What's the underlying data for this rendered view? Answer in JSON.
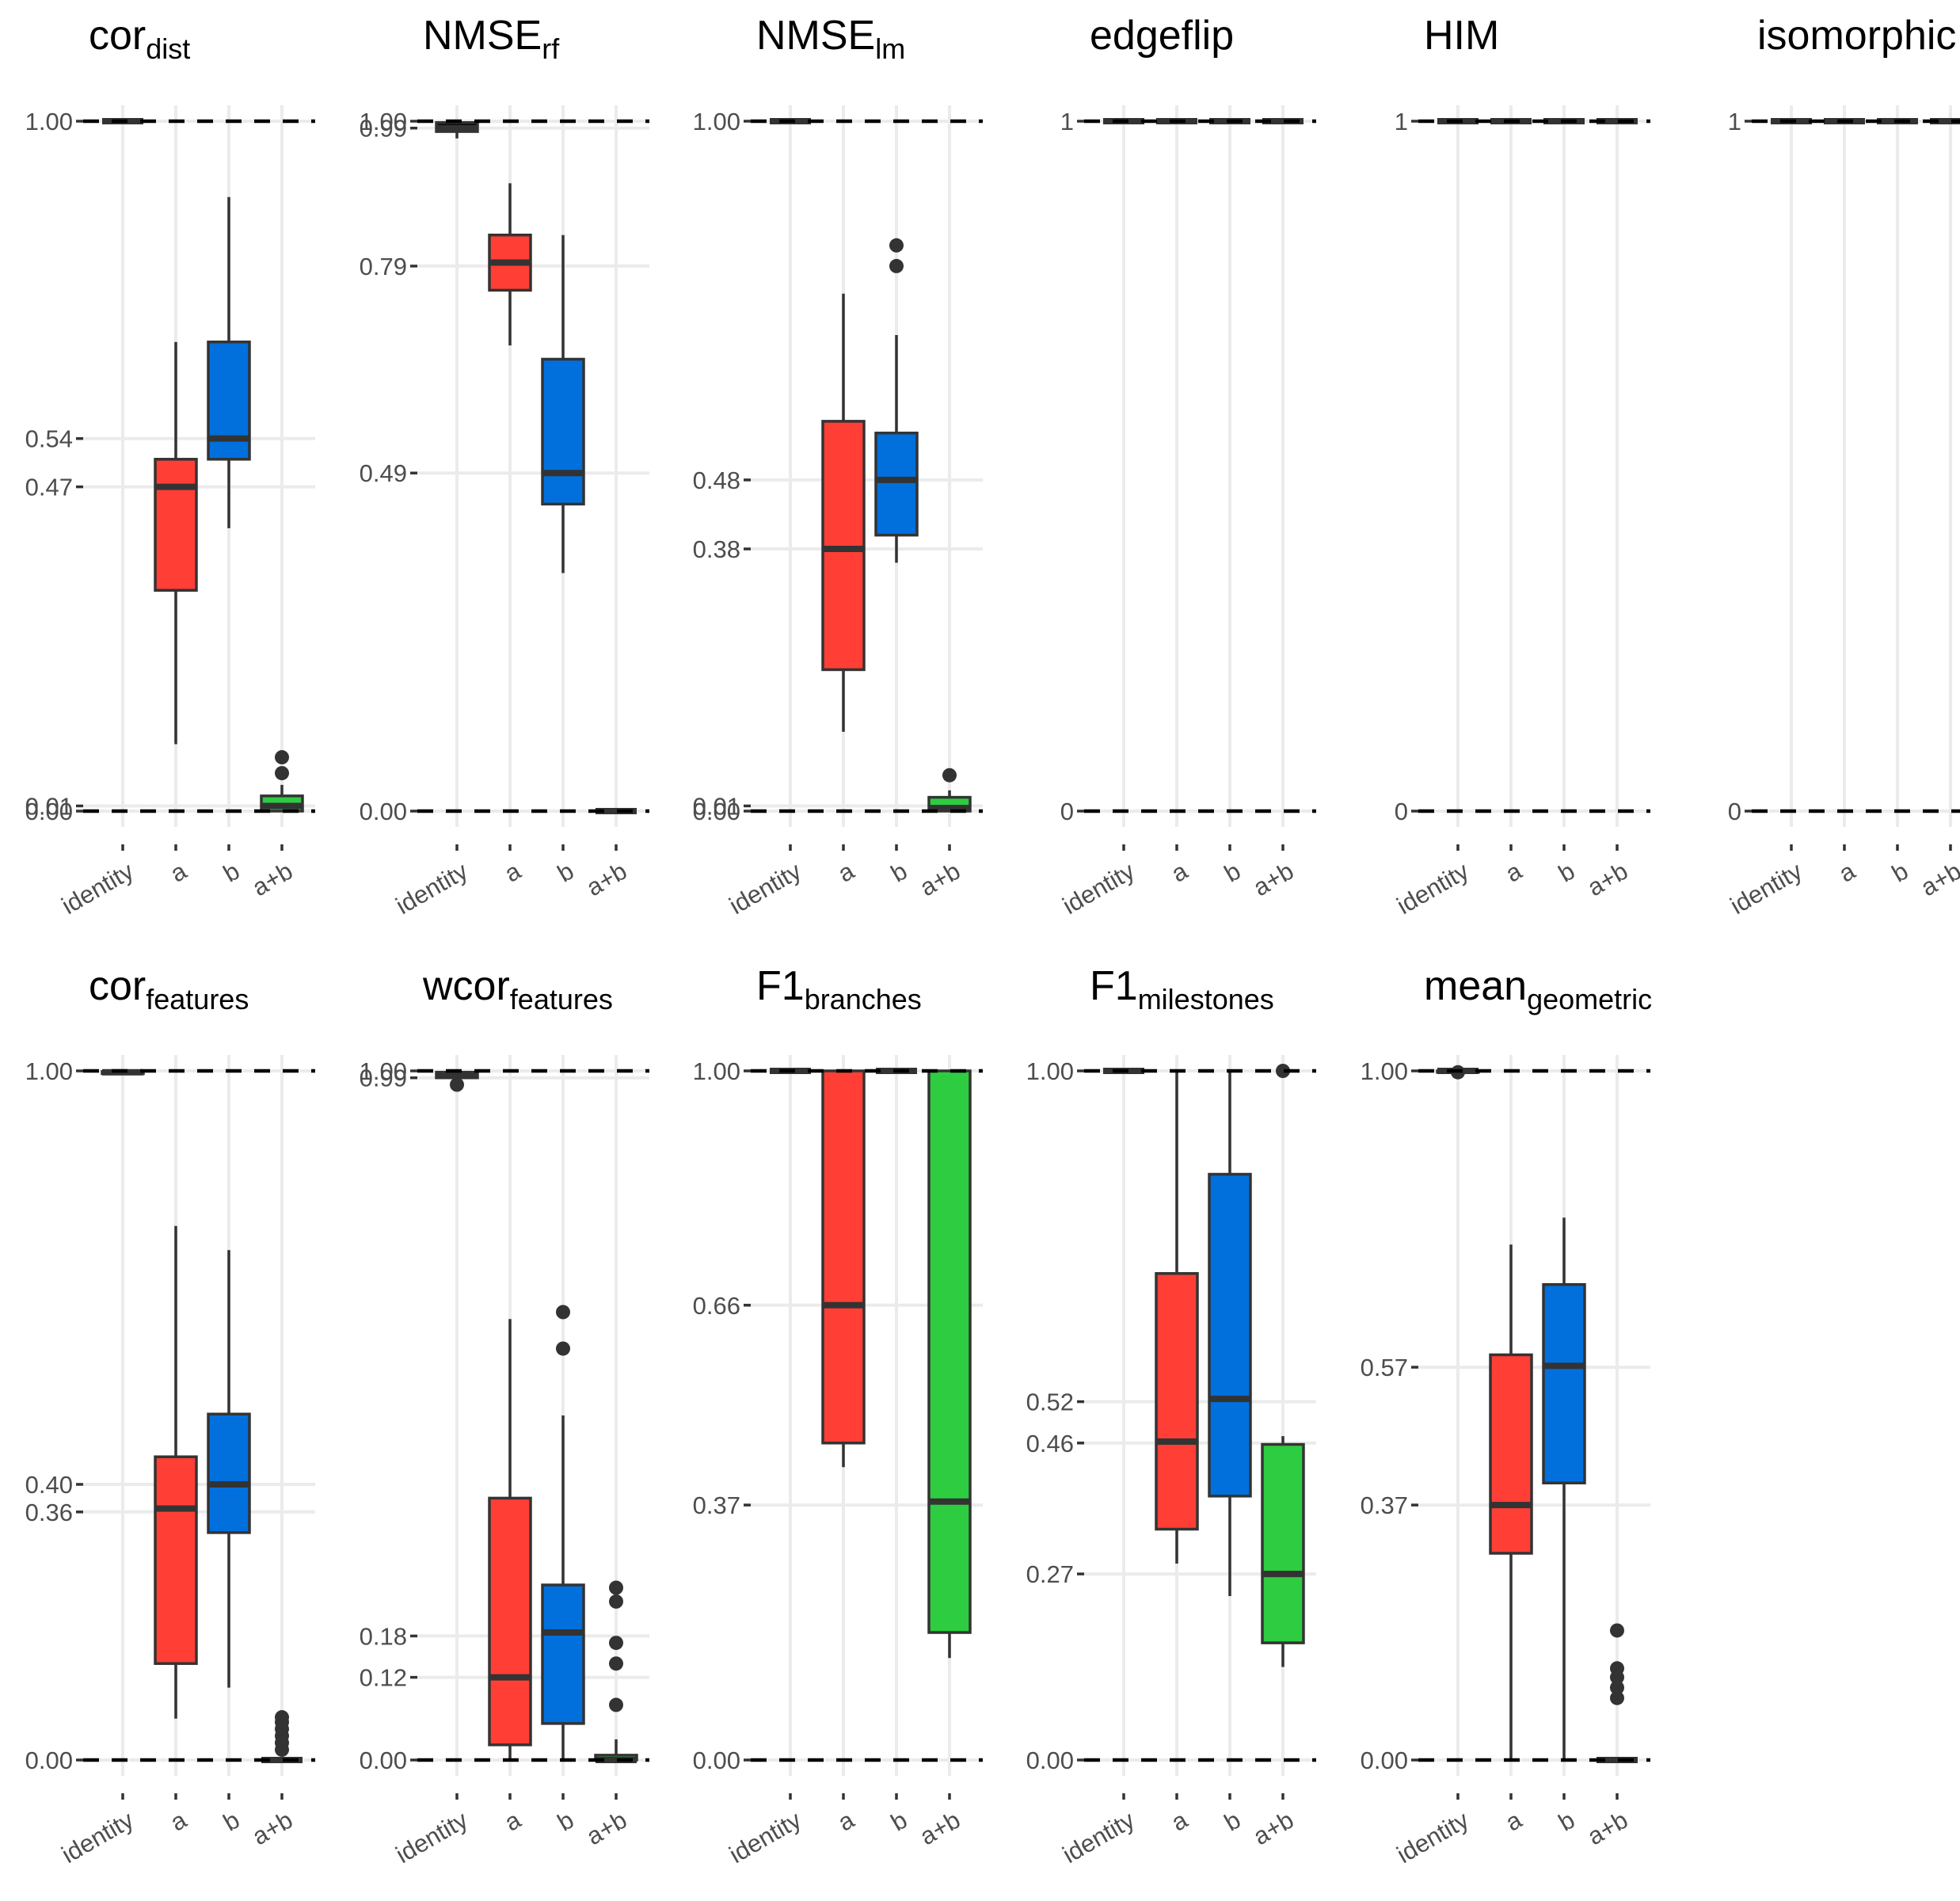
{
  "chart_data": [
    {
      "type": "box",
      "title": {
        "main": "cor",
        "sub": "dist"
      },
      "categories": [
        "identity",
        "a",
        "b",
        "a+b"
      ],
      "yticks": [
        {
          "value": 0.0,
          "label": "0.00"
        },
        {
          "value": 0.0075,
          "label": "0.01"
        },
        {
          "value": 0.47,
          "label": "0.47"
        },
        {
          "value": 0.54,
          "label": "0.54"
        },
        {
          "value": 1.0,
          "label": "1.00"
        }
      ],
      "boxes": [
        {
          "category": "identity",
          "color": "#000000",
          "min": 1.0,
          "q1": 1.0,
          "median": 1.0,
          "q3": 1.0,
          "max": 1.0,
          "outliers": []
        },
        {
          "category": "a",
          "color": "#ff3f35",
          "min": 0.097,
          "q1": 0.32,
          "median": 0.47,
          "q3": 0.51,
          "max": 0.68,
          "outliers": []
        },
        {
          "category": "b",
          "color": "#0170dd",
          "min": 0.41,
          "q1": 0.51,
          "median": 0.54,
          "q3": 0.68,
          "max": 0.89,
          "outliers": []
        },
        {
          "category": "a+b",
          "color": "#2ecc40",
          "min": 0.0,
          "q1": 0.0,
          "median": 0.0075,
          "q3": 0.022,
          "max": 0.038,
          "outliers": [
            0.055,
            0.078
          ]
        }
      ]
    },
    {
      "type": "box",
      "title": {
        "main": "NMSE",
        "sub": "rf"
      },
      "categories": [
        "identity",
        "a",
        "b",
        "a+b"
      ],
      "yticks": [
        {
          "value": 0.0,
          "label": "0.00"
        },
        {
          "value": 0.49,
          "label": "0.49"
        },
        {
          "value": 0.79,
          "label": "0.79"
        },
        {
          "value": 0.99,
          "label": "0.99"
        },
        {
          "value": 1.0,
          "label": "1.00"
        }
      ],
      "boxes": [
        {
          "category": "identity",
          "color": "#000000",
          "min": 0.975,
          "q1": 0.985,
          "median": 0.99,
          "q3": 0.998,
          "max": 1.0,
          "outliers": []
        },
        {
          "category": "a",
          "color": "#ff3f35",
          "min": 0.675,
          "q1": 0.755,
          "median": 0.795,
          "q3": 0.835,
          "max": 0.91,
          "outliers": []
        },
        {
          "category": "b",
          "color": "#0170dd",
          "min": 0.345,
          "q1": 0.445,
          "median": 0.49,
          "q3": 0.655,
          "max": 0.835,
          "outliers": []
        },
        {
          "category": "a+b",
          "color": "#2ecc40",
          "min": 0.0,
          "q1": 0.0,
          "median": 0.0,
          "q3": 0.0,
          "max": 0.0,
          "outliers": []
        }
      ]
    },
    {
      "type": "box",
      "title": {
        "main": "NMSE",
        "sub": "lm"
      },
      "categories": [
        "identity",
        "a",
        "b",
        "a+b"
      ],
      "yticks": [
        {
          "value": 0.0,
          "label": "0.00"
        },
        {
          "value": 0.0075,
          "label": "0.01"
        },
        {
          "value": 0.38,
          "label": "0.38"
        },
        {
          "value": 0.48,
          "label": "0.48"
        },
        {
          "value": 1.0,
          "label": "1.00"
        }
      ],
      "boxes": [
        {
          "category": "identity",
          "color": "#000000",
          "min": 1.0,
          "q1": 1.0,
          "median": 1.0,
          "q3": 1.0,
          "max": 1.0,
          "outliers": []
        },
        {
          "category": "a",
          "color": "#ff3f35",
          "min": 0.115,
          "q1": 0.205,
          "median": 0.38,
          "q3": 0.565,
          "max": 0.75,
          "outliers": []
        },
        {
          "category": "b",
          "color": "#0170dd",
          "min": 0.36,
          "q1": 0.4,
          "median": 0.48,
          "q3": 0.548,
          "max": 0.69,
          "outliers": [
            0.79,
            0.82
          ]
        },
        {
          "category": "a+b",
          "color": "#2ecc40",
          "min": 0.0,
          "q1": 0.0,
          "median": 0.0045,
          "q3": 0.02,
          "max": 0.03,
          "outliers": [
            0.052
          ]
        }
      ]
    },
    {
      "type": "box",
      "title": {
        "main": "edgeflip",
        "sub": ""
      },
      "categories": [
        "identity",
        "a",
        "b",
        "a+b"
      ],
      "yticks": [
        {
          "value": 0.0,
          "label": "0"
        },
        {
          "value": 1.0,
          "label": "1"
        }
      ],
      "boxes": [
        {
          "category": "identity",
          "color": "#000000",
          "min": 1.0,
          "q1": 1.0,
          "median": 1.0,
          "q3": 1.0,
          "max": 1.0,
          "outliers": []
        },
        {
          "category": "a",
          "color": "#ff3f35",
          "min": 1.0,
          "q1": 1.0,
          "median": 1.0,
          "q3": 1.0,
          "max": 1.0,
          "outliers": []
        },
        {
          "category": "b",
          "color": "#0170dd",
          "min": 1.0,
          "q1": 1.0,
          "median": 1.0,
          "q3": 1.0,
          "max": 1.0,
          "outliers": []
        },
        {
          "category": "a+b",
          "color": "#2ecc40",
          "min": 1.0,
          "q1": 1.0,
          "median": 1.0,
          "q3": 1.0,
          "max": 1.0,
          "outliers": []
        }
      ]
    },
    {
      "type": "box",
      "title": {
        "main": "HIM",
        "sub": ""
      },
      "categories": [
        "identity",
        "a",
        "b",
        "a+b"
      ],
      "yticks": [
        {
          "value": 0.0,
          "label": "0"
        },
        {
          "value": 1.0,
          "label": "1"
        }
      ],
      "boxes": [
        {
          "category": "identity",
          "color": "#000000",
          "min": 1.0,
          "q1": 1.0,
          "median": 1.0,
          "q3": 1.0,
          "max": 1.0,
          "outliers": []
        },
        {
          "category": "a",
          "color": "#ff3f35",
          "min": 1.0,
          "q1": 1.0,
          "median": 1.0,
          "q3": 1.0,
          "max": 1.0,
          "outliers": []
        },
        {
          "category": "b",
          "color": "#0170dd",
          "min": 1.0,
          "q1": 1.0,
          "median": 1.0,
          "q3": 1.0,
          "max": 1.0,
          "outliers": []
        },
        {
          "category": "a+b",
          "color": "#2ecc40",
          "min": 1.0,
          "q1": 1.0,
          "median": 1.0,
          "q3": 1.0,
          "max": 1.0,
          "outliers": []
        }
      ]
    },
    {
      "type": "box",
      "title": {
        "main": "isomorphic",
        "sub": ""
      },
      "categories": [
        "identity",
        "a",
        "b",
        "a+b"
      ],
      "yticks": [
        {
          "value": 0.0,
          "label": "0"
        },
        {
          "value": 1.0,
          "label": "1"
        }
      ],
      "boxes": [
        {
          "category": "identity",
          "color": "#000000",
          "min": 1.0,
          "q1": 1.0,
          "median": 1.0,
          "q3": 1.0,
          "max": 1.0,
          "outliers": []
        },
        {
          "category": "a",
          "color": "#ff3f35",
          "min": 1.0,
          "q1": 1.0,
          "median": 1.0,
          "q3": 1.0,
          "max": 1.0,
          "outliers": []
        },
        {
          "category": "b",
          "color": "#0170dd",
          "min": 1.0,
          "q1": 1.0,
          "median": 1.0,
          "q3": 1.0,
          "max": 1.0,
          "outliers": []
        },
        {
          "category": "a+b",
          "color": "#2ecc40",
          "min": 1.0,
          "q1": 1.0,
          "median": 1.0,
          "q3": 1.0,
          "max": 1.0,
          "outliers": []
        }
      ]
    },
    {
      "type": "box",
      "title": {
        "main": "cor",
        "sub": "features"
      },
      "categories": [
        "identity",
        "a",
        "b",
        "a+b"
      ],
      "yticks": [
        {
          "value": 0.0,
          "label": "0.00"
        },
        {
          "value": 0.36,
          "label": "0.36"
        },
        {
          "value": 0.4,
          "label": "0.40"
        },
        {
          "value": 1.0,
          "label": "1.00"
        }
      ],
      "boxes": [
        {
          "category": "identity",
          "color": "#000000",
          "min": 0.995,
          "q1": 0.996,
          "median": 0.998,
          "q3": 0.999,
          "max": 1.0,
          "outliers": []
        },
        {
          "category": "a",
          "color": "#ff3f35",
          "min": 0.06,
          "q1": 0.14,
          "median": 0.365,
          "q3": 0.44,
          "max": 0.775,
          "outliers": []
        },
        {
          "category": "b",
          "color": "#0170dd",
          "min": 0.105,
          "q1": 0.33,
          "median": 0.4,
          "q3": 0.502,
          "max": 0.74,
          "outliers": []
        },
        {
          "category": "a+b",
          "color": "#2ecc40",
          "min": 0.0,
          "q1": 0.0,
          "median": 0.0,
          "q3": 0.0,
          "max": 0.0,
          "outliers": [
            0.015,
            0.025,
            0.035,
            0.045,
            0.055,
            0.062
          ]
        }
      ]
    },
    {
      "type": "box",
      "title": {
        "main": "wcor",
        "sub": "features"
      },
      "categories": [
        "identity",
        "a",
        "b",
        "a+b"
      ],
      "yticks": [
        {
          "value": 0.0,
          "label": "0.00"
        },
        {
          "value": 0.12,
          "label": "0.12"
        },
        {
          "value": 0.18,
          "label": "0.18"
        },
        {
          "value": 0.99,
          "label": "0.99"
        },
        {
          "value": 1.0,
          "label": "1.00"
        }
      ],
      "boxes": [
        {
          "category": "identity",
          "color": "#000000",
          "min": 0.985,
          "q1": 0.99,
          "median": 0.995,
          "q3": 0.998,
          "max": 1.0,
          "outliers": [
            0.98
          ]
        },
        {
          "category": "a",
          "color": "#ff3f35",
          "min": 0.0,
          "q1": 0.022,
          "median": 0.12,
          "q3": 0.38,
          "max": 0.64,
          "outliers": []
        },
        {
          "category": "b",
          "color": "#0170dd",
          "min": 0.0,
          "q1": 0.053,
          "median": 0.185,
          "q3": 0.254,
          "max": 0.5,
          "outliers": [
            0.597,
            0.65
          ]
        },
        {
          "category": "a+b",
          "color": "#2ecc40",
          "min": 0.0,
          "q1": 0.0,
          "median": 0.0,
          "q3": 0.007,
          "max": 0.03,
          "outliers": [
            0.08,
            0.14,
            0.17,
            0.23,
            0.25
          ]
        }
      ]
    },
    {
      "type": "box",
      "title": {
        "main": "F1",
        "sub": "branches"
      },
      "categories": [
        "identity",
        "a",
        "b",
        "a+b"
      ],
      "yticks": [
        {
          "value": 0.0,
          "label": "0.00"
        },
        {
          "value": 0.37,
          "label": "0.37"
        },
        {
          "value": 0.66,
          "label": "0.66"
        },
        {
          "value": 1.0,
          "label": "1.00"
        }
      ],
      "boxes": [
        {
          "category": "identity",
          "color": "#000000",
          "min": 1.0,
          "q1": 1.0,
          "median": 1.0,
          "q3": 1.0,
          "max": 1.0,
          "outliers": []
        },
        {
          "category": "a",
          "color": "#ff3f35",
          "min": 0.425,
          "q1": 0.46,
          "median": 0.66,
          "q3": 1.0,
          "max": 1.0,
          "outliers": []
        },
        {
          "category": "b",
          "color": "#0170dd",
          "min": 1.0,
          "q1": 1.0,
          "median": 1.0,
          "q3": 1.0,
          "max": 1.0,
          "outliers": []
        },
        {
          "category": "a+b",
          "color": "#2ecc40",
          "min": 0.148,
          "q1": 0.185,
          "median": 0.375,
          "q3": 1.0,
          "max": 1.0,
          "outliers": []
        }
      ]
    },
    {
      "type": "box",
      "title": {
        "main": "F1",
        "sub": "milestones"
      },
      "categories": [
        "identity",
        "a",
        "b",
        "a+b"
      ],
      "yticks": [
        {
          "value": 0.0,
          "label": "0.00"
        },
        {
          "value": 0.27,
          "label": "0.27"
        },
        {
          "value": 0.46,
          "label": "0.46"
        },
        {
          "value": 0.52,
          "label": "0.52"
        },
        {
          "value": 1.0,
          "label": "1.00"
        }
      ],
      "boxes": [
        {
          "category": "identity",
          "color": "#000000",
          "min": 1.0,
          "q1": 1.0,
          "median": 1.0,
          "q3": 1.0,
          "max": 1.0,
          "outliers": []
        },
        {
          "category": "a",
          "color": "#ff3f35",
          "min": 0.285,
          "q1": 0.335,
          "median": 0.462,
          "q3": 0.706,
          "max": 1.0,
          "outliers": []
        },
        {
          "category": "b",
          "color": "#0170dd",
          "min": 0.238,
          "q1": 0.383,
          "median": 0.524,
          "q3": 0.85,
          "max": 1.0,
          "outliers": []
        },
        {
          "category": "a+b",
          "color": "#2ecc40",
          "min": 0.135,
          "q1": 0.17,
          "median": 0.27,
          "q3": 0.458,
          "max": 0.47,
          "outliers": [
            1.0
          ]
        }
      ]
    },
    {
      "type": "box",
      "title": {
        "main": "mean",
        "sub": "geometric"
      },
      "categories": [
        "identity",
        "a",
        "b",
        "a+b"
      ],
      "yticks": [
        {
          "value": 0.0,
          "label": "0.00"
        },
        {
          "value": 0.37,
          "label": "0.37"
        },
        {
          "value": 0.57,
          "label": "0.57"
        },
        {
          "value": 1.0,
          "label": "1.00"
        }
      ],
      "boxes": [
        {
          "category": "identity",
          "color": "#000000",
          "min": 0.998,
          "q1": 0.998,
          "median": 1.0,
          "q3": 1.0,
          "max": 1.0,
          "outliers": [
            0.998
          ]
        },
        {
          "category": "a",
          "color": "#ff3f35",
          "min": 0.0,
          "q1": 0.3,
          "median": 0.37,
          "q3": 0.588,
          "max": 0.748,
          "outliers": []
        },
        {
          "category": "b",
          "color": "#0170dd",
          "min": 0.0,
          "q1": 0.402,
          "median": 0.572,
          "q3": 0.69,
          "max": 0.787,
          "outliers": []
        },
        {
          "category": "a+b",
          "color": "#2ecc40",
          "min": 0.0,
          "q1": 0.0,
          "median": 0.0,
          "q3": 0.0,
          "max": 0.0,
          "outliers": [
            0.09,
            0.105,
            0.12,
            0.133,
            0.188
          ]
        }
      ]
    }
  ]
}
